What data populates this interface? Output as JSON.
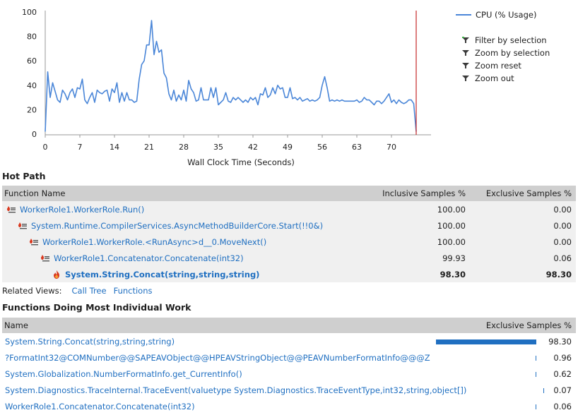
{
  "chart_data": {
    "type": "line",
    "xlabel": "Wall Clock Time (Seconds)",
    "ylabel": "",
    "xlim": [
      0,
      78
    ],
    "ylim": [
      0,
      100
    ],
    "x_ticks": [
      "0",
      "7",
      "14",
      "21",
      "28",
      "35",
      "42",
      "49",
      "56",
      "63",
      "70"
    ],
    "y_ticks": [
      "0",
      "20",
      "40",
      "60",
      "80",
      "100"
    ],
    "series": [
      {
        "name": "CPU (% Usage)",
        "color": "#4a86d8",
        "x": [
          0,
          0.5,
          1,
          1.5,
          2,
          2.5,
          3,
          3.5,
          4,
          4.5,
          5,
          5.5,
          6,
          6.5,
          7,
          7.5,
          8,
          8.5,
          9,
          9.5,
          10,
          10.5,
          11,
          11.5,
          12,
          12.5,
          13,
          13.5,
          14,
          14.5,
          15,
          15.5,
          16,
          16.5,
          17,
          17.5,
          18,
          18.5,
          19,
          19.5,
          20,
          20.5,
          21,
          21.5,
          22,
          22.5,
          23,
          23.5,
          24,
          24.5,
          25,
          25.5,
          26,
          26.5,
          27,
          27.5,
          28,
          28.5,
          29,
          29.5,
          30,
          30.5,
          31,
          31.5,
          32,
          32.5,
          33,
          33.5,
          34,
          34.5,
          35,
          35.5,
          36,
          36.5,
          37,
          37.5,
          38,
          38.5,
          39,
          39.5,
          40,
          40.5,
          41,
          41.5,
          42,
          42.5,
          43,
          43.5,
          44,
          44.5,
          45,
          45.5,
          46,
          46.5,
          47,
          47.5,
          48,
          48.5,
          49,
          49.5,
          50,
          50.5,
          51,
          51.5,
          52,
          52.5,
          53,
          53.5,
          54,
          54.5,
          55,
          55.5,
          56,
          56.5,
          57,
          57.5,
          58,
          58.5,
          59,
          59.5,
          60,
          60.5,
          61,
          61.5,
          62,
          62.5,
          63,
          63.5,
          64,
          64.5,
          65,
          65.5,
          66,
          66.5,
          67,
          67.5,
          68,
          68.5,
          69,
          69.5,
          70,
          70.5,
          71,
          71.5,
          72,
          72.5,
          73,
          73.5,
          74,
          74.5,
          75
        ],
        "y": [
          2,
          51,
          30,
          42,
          35,
          28,
          26,
          36,
          33,
          28,
          34,
          37,
          30,
          38,
          37,
          45,
          28,
          25,
          30,
          34,
          26,
          36,
          34,
          33,
          35,
          36,
          27,
          37,
          34,
          42,
          26,
          34,
          27,
          34,
          28,
          28,
          26,
          27,
          45,
          57,
          60,
          73,
          73,
          93,
          65,
          76,
          67,
          69,
          50,
          46,
          33,
          28,
          36,
          27,
          32,
          28,
          36,
          27,
          44,
          37,
          34,
          27,
          28,
          38,
          28,
          28,
          28,
          38,
          30,
          38,
          24,
          26,
          28,
          34,
          27,
          26,
          30,
          28,
          30,
          28,
          26,
          28,
          26,
          30,
          28,
          30,
          24,
          33,
          32,
          38,
          30,
          32,
          38,
          33,
          40,
          37,
          38,
          30,
          30,
          38,
          29,
          30,
          28,
          30,
          27,
          28,
          29,
          27,
          28,
          27,
          28,
          30,
          40,
          47,
          38,
          27,
          28,
          27,
          28,
          27,
          28,
          27,
          27,
          27,
          27,
          27,
          28,
          26,
          27,
          30,
          28,
          28,
          26,
          24,
          27,
          27,
          25,
          27,
          30,
          33,
          26,
          28,
          25,
          28,
          26,
          25,
          26,
          28,
          28,
          25,
          2
        ]
      }
    ],
    "legend_position": "right",
    "grid": false
  },
  "legend": {
    "series_label": "CPU (% Usage)",
    "actions": [
      {
        "label": "Filter by selection",
        "icon": "filter-plus-icon"
      },
      {
        "label": "Zoom by selection",
        "icon": "funnel-icon"
      },
      {
        "label": "Zoom reset",
        "icon": "funnel-icon"
      },
      {
        "label": "Zoom out",
        "icon": "funnel-icon"
      }
    ]
  },
  "hot_path": {
    "title": "Hot Path",
    "columns": {
      "name": "Function Name",
      "inclusive": "Inclusive Samples %",
      "exclusive": "Exclusive Samples %"
    },
    "rows": [
      {
        "name": "WorkerRole1.WorkerRole.Run()",
        "inclusive": "100.00",
        "exclusive": "0.00",
        "indent": 0,
        "icon": "hot-path-icon",
        "bold": false
      },
      {
        "name": "System.Runtime.CompilerServices.AsyncMethodBuilderCore.Start(!!0&)",
        "inclusive": "100.00",
        "exclusive": "0.00",
        "indent": 1,
        "icon": "hot-path-icon",
        "bold": false
      },
      {
        "name": "WorkerRole1.WorkerRole.<RunAsync>d__0.MoveNext()",
        "inclusive": "100.00",
        "exclusive": "0.00",
        "indent": 2,
        "icon": "hot-path-icon",
        "bold": false
      },
      {
        "name": "WorkerRole1.Concatenator.Concatenate(int32)",
        "inclusive": "99.93",
        "exclusive": "0.06",
        "indent": 3,
        "icon": "hot-path-icon",
        "bold": false
      },
      {
        "name": "System.String.Concat(string,string,string)",
        "inclusive": "98.30",
        "exclusive": "98.30",
        "indent": 4,
        "icon": "flame-icon",
        "bold": true
      }
    ]
  },
  "related_views": {
    "label": "Related Views:",
    "links": [
      "Call Tree",
      "Functions"
    ]
  },
  "work": {
    "title": "Functions Doing Most Individual Work",
    "columns": {
      "name": "Name",
      "exclusive": "Exclusive Samples %"
    },
    "rows": [
      {
        "name": "System.String.Concat(string,string,string)",
        "value": "98.30",
        "fraction": 0.983
      },
      {
        "name": "?FormatInt32@COMNumber@@SAPEAVObject@@HPEAVStringObject@@PEAVNumberFormatInfo@@@Z",
        "value": "0.96",
        "fraction": 0.0096
      },
      {
        "name": "System.Globalization.NumberFormatInfo.get_CurrentInfo()",
        "value": "0.62",
        "fraction": 0.0062
      },
      {
        "name": "System.Diagnostics.TraceInternal.TraceEvent(valuetype System.Diagnostics.TraceEventType,int32,string,object[])",
        "value": "0.07",
        "fraction": 0.0007
      },
      {
        "name": "WorkerRole1.Concatenator.Concatenate(int32)",
        "value": "0.06",
        "fraction": 0.0006
      }
    ]
  }
}
